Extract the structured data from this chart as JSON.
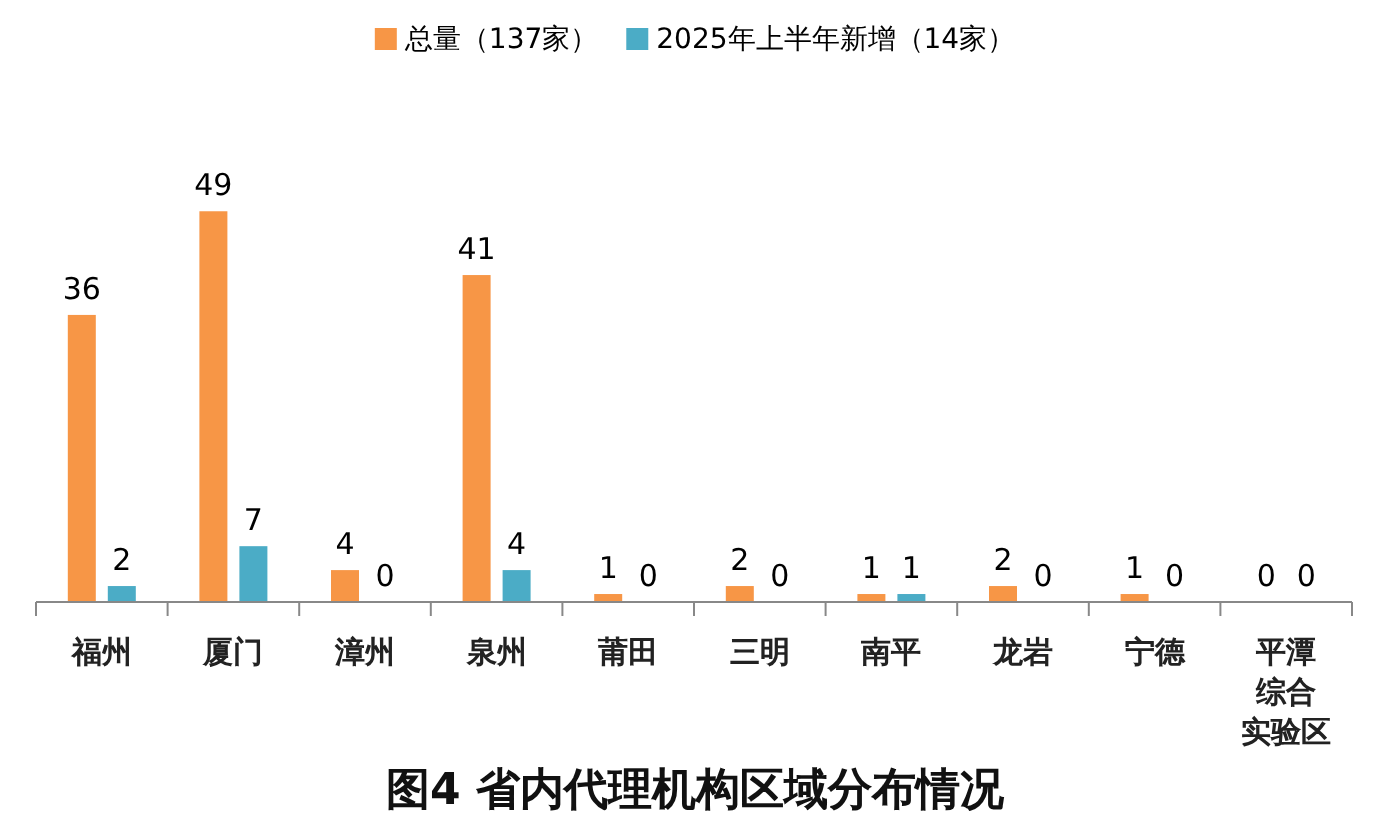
{
  "chart_data": {
    "type": "bar",
    "title": "图4 省内代理机构区域分布情况",
    "categories": [
      "福州",
      "厦门",
      "漳州",
      "泉州",
      "莆田",
      "三明",
      "南平",
      "龙岩",
      "宁德",
      "平潭综合实验区"
    ],
    "series": [
      {
        "name": "总量（137家）",
        "color": "#f79646",
        "values": [
          36,
          49,
          4,
          41,
          1,
          2,
          1,
          2,
          1,
          0
        ]
      },
      {
        "name": "2025年上半年新增（14家）",
        "color": "#4bacc6",
        "values": [
          2,
          7,
          0,
          4,
          0,
          0,
          1,
          0,
          0,
          0
        ]
      }
    ],
    "data_labels": true,
    "legend": "top"
  }
}
